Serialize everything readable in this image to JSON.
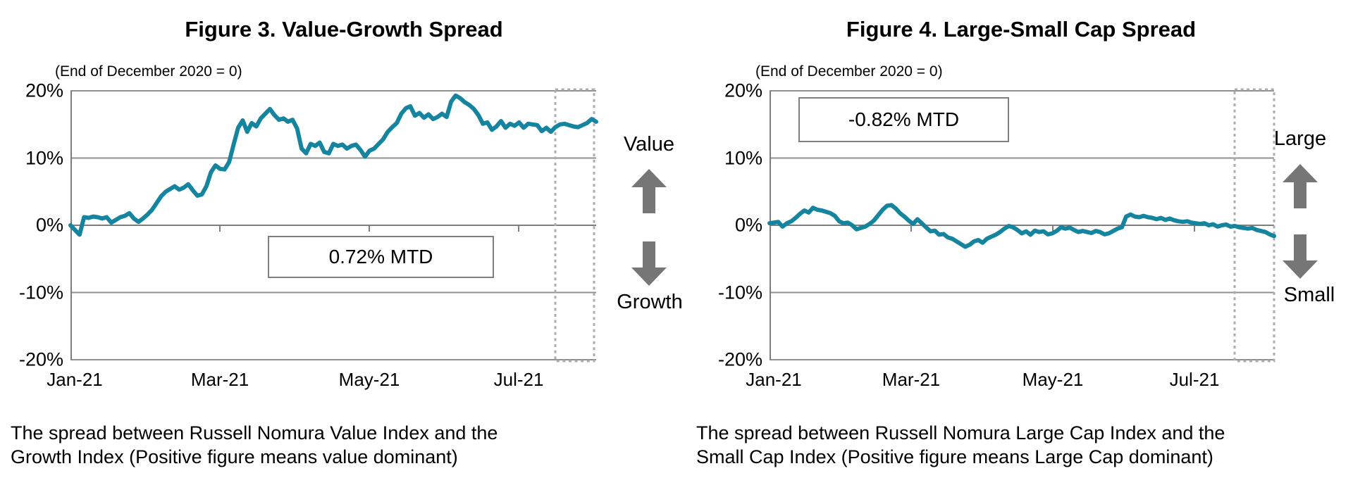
{
  "chart_data": [
    {
      "type": "line",
      "title": "Figure 3. Value-Growth Spread",
      "subtitle": "(End of December 2020 = 0)",
      "annotation": "0.72% MTD",
      "side_label_top": "Value",
      "side_label_bottom": "Growth",
      "caption_lines": [
        "The spread between Russell Nomura Value Index and the",
        "Growth Index (Positive figure means value dominant)"
      ],
      "x_ticklabels": [
        "Jan-21",
        "Mar-21",
        "May-21",
        "Jul-21"
      ],
      "y_ticklabels": [
        "20%",
        "10%",
        "0%",
        "-10%",
        "-20%"
      ],
      "ylim": [
        -20,
        20
      ],
      "grid": true,
      "legend": false,
      "line_color": "#15859f",
      "highlight": "dotted box over the most recent month at right edge",
      "series": [
        {
          "name": "spread_pct",
          "values": [
            0,
            -0.7,
            -1.4,
            1.2,
            1.1,
            1.3,
            1.2,
            1.0,
            1.2,
            0.4,
            0.8,
            1.2,
            1.4,
            1.8,
            1.0,
            0.5,
            1.0,
            1.6,
            2.3,
            3.3,
            4.3,
            5.0,
            5.4,
            5.8,
            5.3,
            5.6,
            6.1,
            5.2,
            4.4,
            4.6,
            5.8,
            7.9,
            8.9,
            8.4,
            8.3,
            9.4,
            12.0,
            14.5,
            15.6,
            13.9,
            15.2,
            14.7,
            15.9,
            16.6,
            17.3,
            16.4,
            15.7,
            15.9,
            15.4,
            15.7,
            14.4,
            11.4,
            10.7,
            12.1,
            11.8,
            12.3,
            10.9,
            10.7,
            12.1,
            11.8,
            12.0,
            11.4,
            11.8,
            12.0,
            11.2,
            10.2,
            11.1,
            11.4,
            12.1,
            12.8,
            13.9,
            14.6,
            15.2,
            16.6,
            17.4,
            17.7,
            16.3,
            16.7,
            16.0,
            16.5,
            15.8,
            16.1,
            16.6,
            16.1,
            18.4,
            19.3,
            18.9,
            18.3,
            17.9,
            17.3,
            16.4,
            15.1,
            15.3,
            14.2,
            14.7,
            15.5,
            14.5,
            15.1,
            14.8,
            15.3,
            14.5,
            15.1,
            15.0,
            14.9,
            14.0,
            14.5,
            13.9,
            14.6,
            15.0,
            15.1,
            14.9,
            14.7,
            14.6,
            14.9,
            15.2,
            15.8,
            15.4
          ]
        }
      ]
    },
    {
      "type": "line",
      "title": "Figure 4. Large-Small Cap Spread",
      "subtitle": "(End of December 2020 = 0)",
      "annotation": "-0.82% MTD",
      "side_label_top": "Large",
      "side_label_bottom": "Small",
      "caption_lines": [
        "The spread between Russell Nomura Large Cap Index and the",
        "Small Cap Index (Positive figure means Large Cap dominant)"
      ],
      "x_ticklabels": [
        "Jan-21",
        "Mar-21",
        "May-21",
        "Jul-21"
      ],
      "y_ticklabels": [
        "20%",
        "10%",
        "0%",
        "-10%",
        "-20%"
      ],
      "ylim": [
        -20,
        20
      ],
      "grid": true,
      "legend": false,
      "line_color": "#15859f",
      "highlight": "dotted box over the most recent month at right edge",
      "series": [
        {
          "name": "spread_pct",
          "values": [
            0.3,
            0.4,
            0.5,
            -0.2,
            0.3,
            0.6,
            1.1,
            1.7,
            2.2,
            1.9,
            2.6,
            2.3,
            2.2,
            2.0,
            1.8,
            1.4,
            0.6,
            0.3,
            0.4,
            0.0,
            -0.6,
            -0.4,
            -0.2,
            0.2,
            0.7,
            1.5,
            2.3,
            2.9,
            3.0,
            2.5,
            1.8,
            1.3,
            0.7,
            0.2,
            0.9,
            0.3,
            -0.3,
            -0.9,
            -0.8,
            -1.4,
            -1.3,
            -1.8,
            -2.0,
            -2.4,
            -2.8,
            -3.2,
            -2.9,
            -2.4,
            -2.2,
            -2.6,
            -2.0,
            -1.7,
            -1.4,
            -1.0,
            -0.5,
            -0.1,
            -0.3,
            -0.7,
            -1.2,
            -0.9,
            -1.4,
            -0.8,
            -1.0,
            -0.9,
            -1.35,
            -1.2,
            -0.85,
            -0.3,
            -0.5,
            -0.35,
            -0.7,
            -1.0,
            -0.85,
            -1.0,
            -1.15,
            -0.85,
            -1.0,
            -1.35,
            -1.2,
            -0.85,
            -0.5,
            -0.3,
            1.3,
            1.6,
            1.3,
            1.2,
            1.4,
            1.2,
            1.1,
            0.9,
            1.1,
            0.8,
            1.0,
            0.75,
            0.6,
            0.5,
            0.6,
            0.4,
            0.3,
            0.2,
            0.3,
            0.0,
            0.15,
            -0.2,
            0.0,
            0.1,
            -0.2,
            -0.1,
            -0.3,
            -0.4,
            -0.5,
            -0.4,
            -0.7,
            -0.85,
            -1.0,
            -1.35,
            -1.6
          ]
        }
      ]
    }
  ]
}
